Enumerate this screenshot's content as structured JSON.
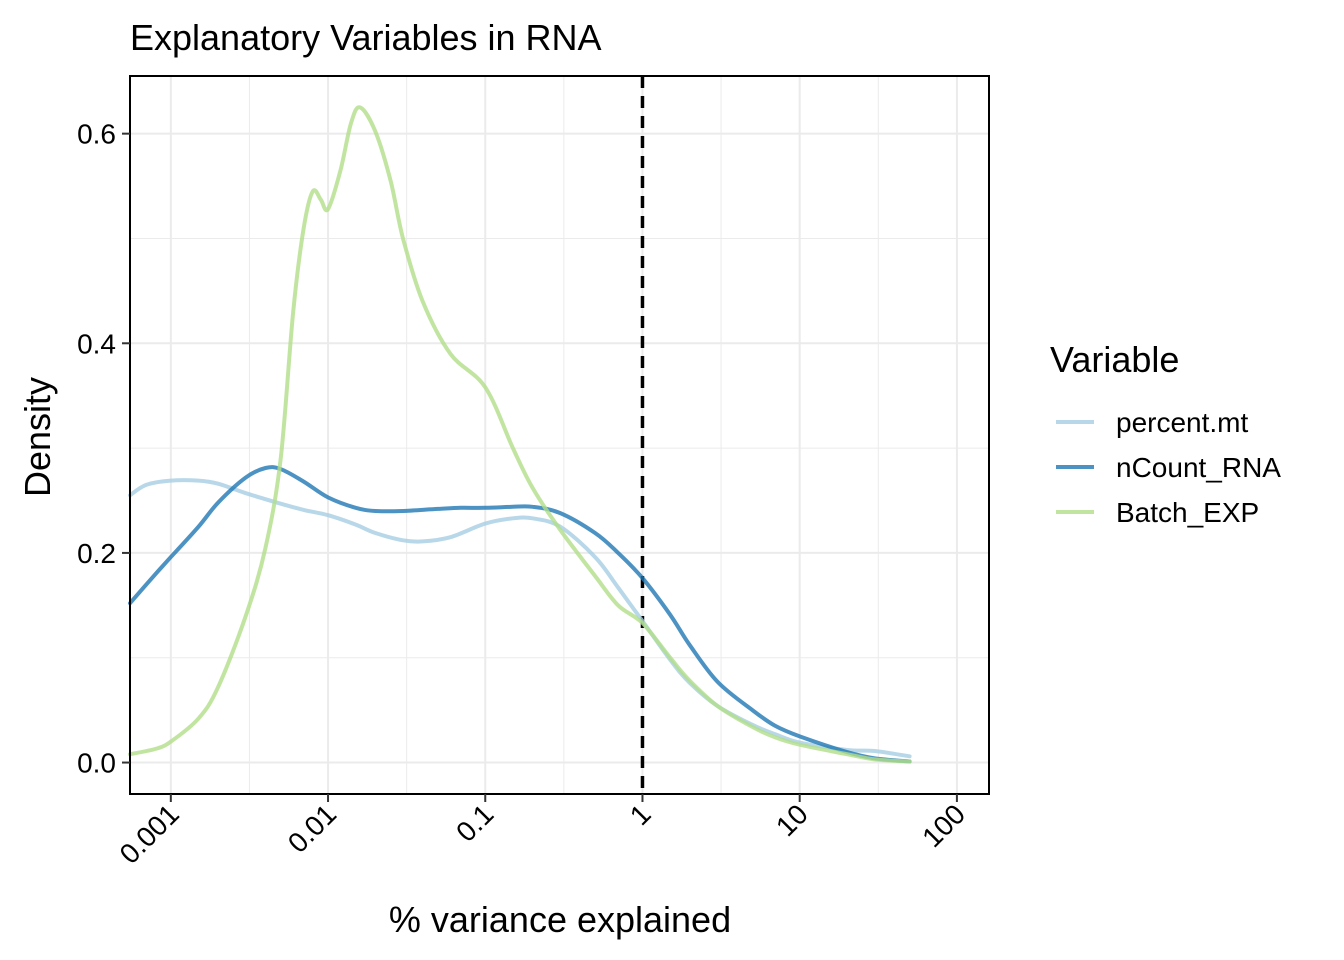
{
  "chart_data": {
    "type": "line",
    "title": "Explanatory Variables in RNA",
    "xlabel": "% variance explained",
    "ylabel": "Density",
    "x_scale": "log10",
    "xlim": [
      0.00055,
      160
    ],
    "ylim": [
      -0.03,
      0.655
    ],
    "x_ticks": [
      0.001,
      0.01,
      0.1,
      1,
      10,
      100
    ],
    "x_tick_labels": [
      "0.001",
      "0.01",
      "0.1",
      "1",
      "10",
      "100"
    ],
    "y_ticks": [
      0.0,
      0.2,
      0.4,
      0.6
    ],
    "y_tick_labels": [
      "0.0",
      "0.2",
      "0.4",
      "0.6"
    ],
    "grid": true,
    "reference_line": {
      "x": 1,
      "style": "dashed",
      "color": "#000000"
    },
    "legend": {
      "title": "Variable",
      "position": "right"
    },
    "series": [
      {
        "name": "percent.mt",
        "color": "#A6CEE3",
        "x": [
          0.00055,
          0.0007,
          0.001,
          0.0015,
          0.002,
          0.003,
          0.005,
          0.007,
          0.01,
          0.015,
          0.02,
          0.03,
          0.04,
          0.06,
          0.1,
          0.15,
          0.2,
          0.3,
          0.5,
          0.7,
          1,
          1.5,
          2,
          3,
          5,
          7,
          10,
          20,
          30,
          50
        ],
        "y": [
          0.255,
          0.265,
          0.269,
          0.269,
          0.266,
          0.257,
          0.247,
          0.241,
          0.236,
          0.227,
          0.219,
          0.212,
          0.211,
          0.215,
          0.228,
          0.233,
          0.233,
          0.225,
          0.196,
          0.167,
          0.135,
          0.098,
          0.076,
          0.054,
          0.036,
          0.027,
          0.019,
          0.012,
          0.011,
          0.006
        ]
      },
      {
        "name": "nCount_RNA",
        "color": "#1F78B4",
        "x": [
          0.00055,
          0.0008,
          0.001,
          0.0015,
          0.002,
          0.003,
          0.004,
          0.005,
          0.007,
          0.01,
          0.015,
          0.02,
          0.03,
          0.05,
          0.07,
          0.1,
          0.15,
          0.2,
          0.3,
          0.5,
          0.7,
          1,
          1.5,
          2,
          3,
          5,
          7,
          10,
          20,
          30,
          50
        ],
        "y": [
          0.152,
          0.18,
          0.196,
          0.225,
          0.248,
          0.272,
          0.281,
          0.28,
          0.268,
          0.253,
          0.243,
          0.24,
          0.24,
          0.242,
          0.243,
          0.243,
          0.244,
          0.244,
          0.238,
          0.219,
          0.2,
          0.176,
          0.141,
          0.112,
          0.077,
          0.05,
          0.035,
          0.025,
          0.01,
          0.004,
          0.001
        ]
      },
      {
        "name": "Batch_EXP",
        "color": "#B2DF8A",
        "x": [
          0.00055,
          0.0008,
          0.001,
          0.0015,
          0.002,
          0.003,
          0.004,
          0.005,
          0.006,
          0.007,
          0.008,
          0.009,
          0.01,
          0.012,
          0.014,
          0.016,
          0.02,
          0.025,
          0.03,
          0.04,
          0.06,
          0.1,
          0.15,
          0.2,
          0.3,
          0.5,
          0.7,
          1,
          1.5,
          2,
          3,
          5,
          7,
          10,
          20,
          30,
          50
        ],
        "y": [
          0.008,
          0.013,
          0.02,
          0.042,
          0.072,
          0.14,
          0.205,
          0.29,
          0.43,
          0.51,
          0.545,
          0.537,
          0.528,
          0.565,
          0.61,
          0.625,
          0.602,
          0.555,
          0.5,
          0.44,
          0.39,
          0.358,
          0.3,
          0.262,
          0.222,
          0.178,
          0.15,
          0.133,
          0.1,
          0.078,
          0.054,
          0.034,
          0.024,
          0.017,
          0.008,
          0.003,
          0.001
        ]
      }
    ]
  }
}
